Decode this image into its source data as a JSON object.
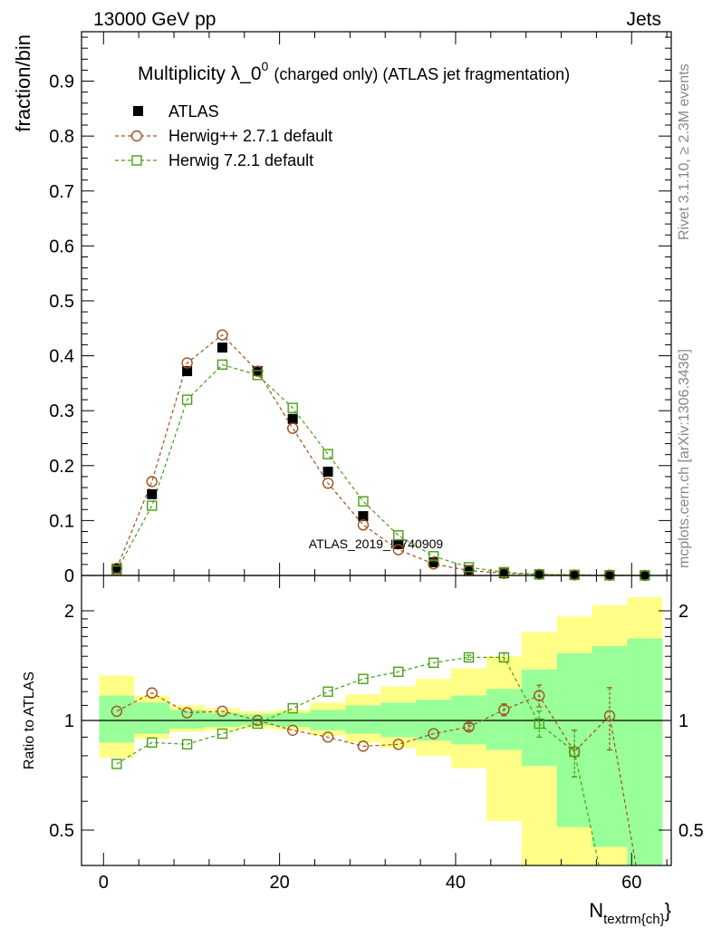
{
  "header": {
    "left": "13000 GeV pp",
    "right": "Jets"
  },
  "side_labels": {
    "rivet": "Rivet 3.1.10, ≥ 2.3M events",
    "mcplots": "mcplots.cern.ch [arXiv:1306.3436]"
  },
  "watermark": "ATLAS_2019_I1740909",
  "colors": {
    "data": "#000000",
    "herwigpp": "#a0501e",
    "herwig7": "#4a9e18",
    "band_inner": "#99ff99",
    "band_outer": "#ffff88"
  },
  "chart_data": [
    {
      "type": "scatter",
      "title_main": "Multiplicity λ_0",
      "title_sup": "0",
      "title_rest": "(charged only) (ATLAS jet fragmentation)",
      "ylabel": "fraction/bin",
      "xlim": [
        -2.5,
        64.5
      ],
      "ylim": [
        0,
        0.99
      ],
      "yticks": [
        "0",
        "0.1",
        "0.2",
        "0.3",
        "0.4",
        "0.5",
        "0.6",
        "0.7",
        "0.8",
        "0.9"
      ],
      "x": [
        1.5,
        5.5,
        9.5,
        13.5,
        17.5,
        21.5,
        25.5,
        29.5,
        33.5,
        37.5,
        41.5,
        45.5,
        49.5,
        53.5,
        57.5,
        61.5
      ],
      "series": [
        {
          "name": "ATLAS",
          "marker": "filled-square",
          "values": [
            0.012,
            0.148,
            0.372,
            0.415,
            0.372,
            0.285,
            0.189,
            0.108,
            0.057,
            0.024,
            0.01,
            0.004,
            0.002,
            0.001,
            0.0005,
            0.0002
          ]
        },
        {
          "name": "Herwig++ 2.7.1 default",
          "marker": "open-circle",
          "values": [
            0.013,
            0.171,
            0.387,
            0.438,
            0.372,
            0.268,
            0.168,
            0.092,
            0.047,
            0.021,
            0.009,
            0.004,
            0.002,
            0.001,
            0.0005,
            0.0001
          ]
        },
        {
          "name": "Herwig 7.2.1 default",
          "marker": "open-square",
          "values": [
            0.009,
            0.127,
            0.32,
            0.384,
            0.365,
            0.305,
            0.221,
            0.135,
            0.073,
            0.035,
            0.015,
            0.006,
            0.002,
            0.001,
            0.0002,
            0.0001
          ]
        }
      ],
      "legend": "top-left"
    },
    {
      "type": "scatter",
      "ylabel": "Ratio to ATLAS",
      "xlabel_main": "N",
      "xlabel_sub": "textrm{ch}",
      "xlabel_close": "}",
      "xlim": [
        -2.5,
        64.5
      ],
      "ylim": [
        0.37,
        2.27
      ],
      "yticks": [
        "0.5",
        "1",
        "2"
      ],
      "xticks": [
        "0",
        "20",
        "40",
        "60"
      ],
      "bins": [
        {
          "lo": -0.5,
          "hi": 3.5,
          "inner": [
            0.87,
            1.17
          ],
          "outer": [
            0.79,
            1.33
          ]
        },
        {
          "lo": 3.5,
          "hi": 7.5,
          "inner": [
            0.92,
            1.12
          ],
          "outer": [
            0.89,
            1.17
          ]
        },
        {
          "lo": 7.5,
          "hi": 11.5,
          "inner": [
            0.95,
            1.07
          ],
          "outer": [
            0.93,
            1.1
          ]
        },
        {
          "lo": 11.5,
          "hi": 15.5,
          "inner": [
            0.96,
            1.05
          ],
          "outer": [
            0.94,
            1.08
          ]
        },
        {
          "lo": 15.5,
          "hi": 19.5,
          "inner": [
            0.97,
            1.04
          ],
          "outer": [
            0.95,
            1.06
          ]
        },
        {
          "lo": 19.5,
          "hi": 23.5,
          "inner": [
            0.96,
            1.05
          ],
          "outer": [
            0.94,
            1.07
          ]
        },
        {
          "lo": 23.5,
          "hi": 27.5,
          "inner": [
            0.94,
            1.07
          ],
          "outer": [
            0.91,
            1.12
          ]
        },
        {
          "lo": 27.5,
          "hi": 31.5,
          "inner": [
            0.92,
            1.1
          ],
          "outer": [
            0.87,
            1.18
          ]
        },
        {
          "lo": 31.5,
          "hi": 35.5,
          "inner": [
            0.9,
            1.12
          ],
          "outer": [
            0.84,
            1.24
          ]
        },
        {
          "lo": 35.5,
          "hi": 39.5,
          "inner": [
            0.88,
            1.14
          ],
          "outer": [
            0.8,
            1.3
          ]
        },
        {
          "lo": 39.5,
          "hi": 43.5,
          "inner": [
            0.86,
            1.17
          ],
          "outer": [
            0.74,
            1.39
          ]
        },
        {
          "lo": 43.5,
          "hi": 47.5,
          "inner": [
            0.83,
            1.22
          ],
          "outer": [
            0.53,
            1.5
          ]
        },
        {
          "lo": 47.5,
          "hi": 51.5,
          "inner": [
            0.75,
            1.38
          ],
          "outer": [
            0.37,
            1.75
          ]
        },
        {
          "lo": 51.5,
          "hi": 55.5,
          "inner": [
            0.51,
            1.53
          ],
          "outer": [
            0.37,
            1.93
          ]
        },
        {
          "lo": 55.5,
          "hi": 59.5,
          "inner": [
            0.45,
            1.6
          ],
          "outer": [
            0.37,
            2.07
          ]
        },
        {
          "lo": 59.5,
          "hi": 63.5,
          "inner": [
            0.37,
            1.68
          ],
          "outer": [
            0.37,
            2.18
          ]
        }
      ],
      "x": [
        1.5,
        5.5,
        9.5,
        13.5,
        17.5,
        21.5,
        25.5,
        29.5,
        33.5,
        37.5,
        41.5,
        45.5,
        49.5,
        53.5,
        57.5
      ],
      "series": [
        {
          "name": "Herwig++ 2.7.1 default",
          "values": [
            1.06,
            1.19,
            1.05,
            1.06,
            1.0,
            0.94,
            0.9,
            0.85,
            0.86,
            0.92,
            0.96,
            1.07,
            1.17,
            0.82,
            1.03
          ],
          "errors": [
            0,
            0,
            0,
            0,
            0,
            0,
            0,
            0,
            0,
            0,
            0.02,
            0.04,
            0.08,
            0.12,
            0.2
          ],
          "tail_to": 60.5
        },
        {
          "name": "Herwig 7.2.1 default",
          "values": [
            0.76,
            0.87,
            0.86,
            0.92,
            0.98,
            1.08,
            1.2,
            1.3,
            1.36,
            1.44,
            1.49,
            1.49,
            0.98,
            0.82
          ],
          "errors": [
            0,
            0,
            0,
            0,
            0,
            0,
            0,
            0,
            0,
            0,
            0.02,
            0.04,
            0.08,
            0.12
          ],
          "tail_to": 56.3
        }
      ]
    }
  ]
}
